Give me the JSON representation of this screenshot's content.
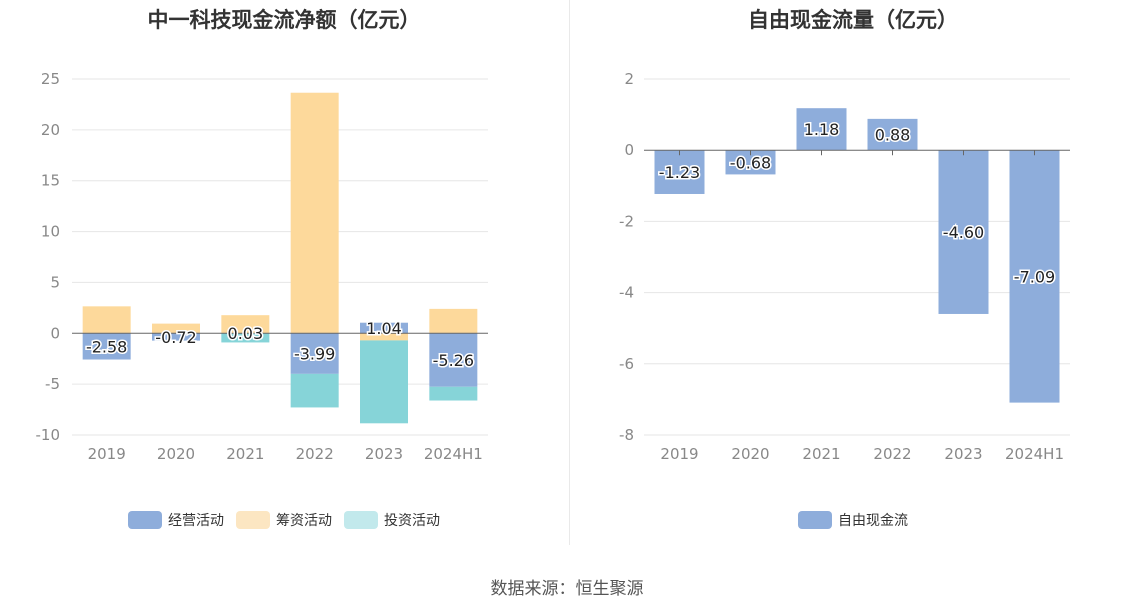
{
  "chart_data": [
    {
      "type": "bar",
      "stacked": true,
      "title": "中一科技现金流净额（亿元）",
      "categories": [
        "2019",
        "2020",
        "2021",
        "2022",
        "2023",
        "2024H1"
      ],
      "ylim": [
        -10,
        25
      ],
      "yticks": [
        25,
        20,
        15,
        10,
        5,
        0,
        -5,
        -10
      ],
      "grid": true,
      "legend_position": "bottom",
      "series": [
        {
          "name": "经营活动",
          "color": "#8eaddb",
          "values": [
            -2.58,
            -0.72,
            0.03,
            -3.99,
            1.04,
            -5.26
          ],
          "labels": [
            "-2.58",
            "-0.72",
            "0.03",
            "-3.99",
            "1.04",
            "-5.26"
          ]
        },
        {
          "name": "筹资活动",
          "color": "#fdd99b",
          "values": [
            2.65,
            0.95,
            1.75,
            23.65,
            -0.7,
            2.4
          ]
        },
        {
          "name": "投资活动",
          "color": "#86d4d8",
          "values": [
            0.0,
            0.0,
            -0.9,
            -3.3,
            -8.15,
            -1.35
          ]
        }
      ],
      "legend_colors": [
        "#8eaddb",
        "#fce6c2",
        "#c2e9ec"
      ]
    },
    {
      "type": "bar",
      "title": "自由现金流量（亿元）",
      "categories": [
        "2019",
        "2020",
        "2021",
        "2022",
        "2023",
        "2024H1"
      ],
      "ylim": [
        -8,
        2
      ],
      "yticks": [
        2,
        0,
        -2,
        -4,
        -6,
        -8
      ],
      "grid": true,
      "legend_position": "bottom",
      "series": [
        {
          "name": "自由现金流",
          "color": "#8eaddb",
          "values": [
            -1.23,
            -0.68,
            1.18,
            0.88,
            -4.6,
            -7.09
          ],
          "labels": [
            "-1.23",
            "-0.68",
            "1.18",
            "0.88",
            "-4.60",
            "-7.09"
          ]
        }
      ]
    }
  ],
  "source_text": "数据来源：恒生聚源"
}
